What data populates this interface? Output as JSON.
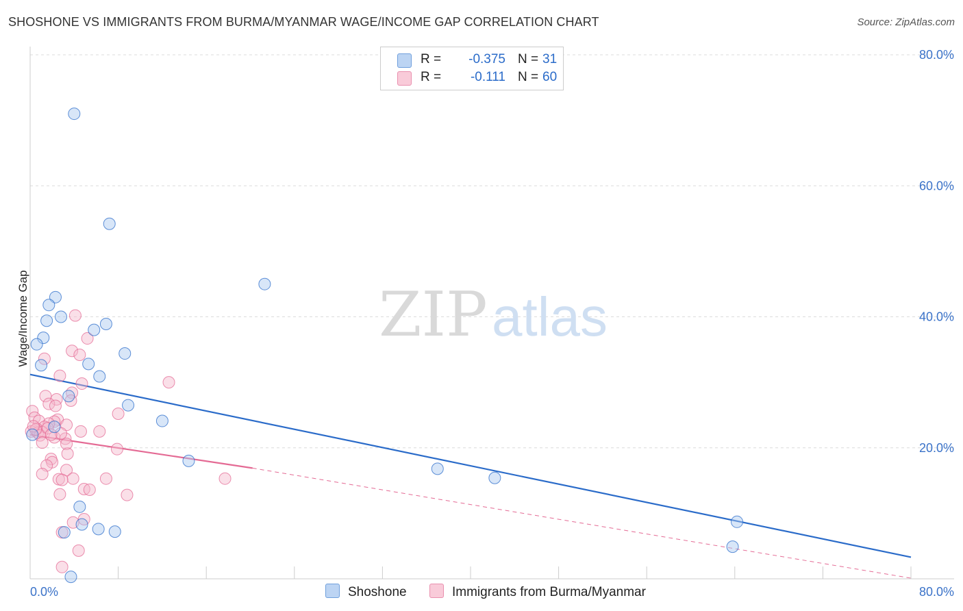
{
  "header": {
    "title": "SHOSHONE VS IMMIGRANTS FROM BURMA/MYANMAR WAGE/INCOME GAP CORRELATION CHART",
    "source": "Source: ZipAtlas.com"
  },
  "watermark": {
    "zip": "ZIP",
    "atlas": "atlas"
  },
  "colors": {
    "blue": "#2a6bc9",
    "blue_fill": "#a9c8ef",
    "pink": "#e46a94",
    "pink_fill": "#f5b8cb",
    "axis_text": "#3a72c8"
  },
  "legend": {
    "rows": [
      {
        "r_label": "R =",
        "r_value": "-0.375",
        "n_label": "N =",
        "n_value": "31"
      },
      {
        "r_label": "R =",
        "r_value": "-0.111",
        "n_label": "N =",
        "n_value": "60"
      }
    ],
    "bottom": [
      "Shoshone",
      "Immigrants from Burma/Myanmar"
    ]
  },
  "chart_data": {
    "type": "scatter",
    "title": "SHOSHONE VS IMMIGRANTS FROM BURMA/MYANMAR WAGE/INCOME GAP CORRELATION CHART",
    "xlabel": "",
    "ylabel": "Wage/Income Gap",
    "xlim": [
      0,
      80
    ],
    "ylim": [
      0,
      80
    ],
    "x_tick_labels": [
      "0.0%",
      "80.0%"
    ],
    "y_tick_labels": [
      "20.0%",
      "40.0%",
      "60.0%",
      "80.0%"
    ],
    "y_ticks": [
      20,
      40,
      60,
      80
    ],
    "grid": true,
    "series": [
      {
        "name": "Shoshone",
        "color": "#2a6bc9",
        "fill": "#a9c8ef",
        "points": [
          [
            4.0,
            71.0
          ],
          [
            7.2,
            54.2
          ],
          [
            21.3,
            45.0
          ],
          [
            2.3,
            43.0
          ],
          [
            1.7,
            41.8
          ],
          [
            2.8,
            40.0
          ],
          [
            1.5,
            39.4
          ],
          [
            6.9,
            38.9
          ],
          [
            5.8,
            38.0
          ],
          [
            1.2,
            36.8
          ],
          [
            0.6,
            35.8
          ],
          [
            8.6,
            34.4
          ],
          [
            1.0,
            32.6
          ],
          [
            5.3,
            32.8
          ],
          [
            6.3,
            30.9
          ],
          [
            3.5,
            27.9
          ],
          [
            8.9,
            26.5
          ],
          [
            12.0,
            24.1
          ],
          [
            2.2,
            23.2
          ],
          [
            0.2,
            22.0
          ],
          [
            14.4,
            18.0
          ],
          [
            37.0,
            16.8
          ],
          [
            42.2,
            15.4
          ],
          [
            4.5,
            11.0
          ],
          [
            4.7,
            8.3
          ],
          [
            3.1,
            7.1
          ],
          [
            6.2,
            7.6
          ],
          [
            7.7,
            7.2
          ],
          [
            64.2,
            8.7
          ],
          [
            63.8,
            4.9
          ],
          [
            3.7,
            0.3
          ]
        ]
      },
      {
        "name": "Immigrants from Burma/Myanmar",
        "color": "#e46a94",
        "fill": "#f5b8cb",
        "points": [
          [
            4.1,
            40.2
          ],
          [
            5.2,
            36.7
          ],
          [
            3.8,
            34.8
          ],
          [
            4.5,
            34.2
          ],
          [
            1.3,
            33.6
          ],
          [
            12.6,
            30.0
          ],
          [
            2.7,
            31.0
          ],
          [
            4.7,
            29.8
          ],
          [
            3.8,
            28.4
          ],
          [
            1.4,
            27.9
          ],
          [
            3.7,
            27.2
          ],
          [
            2.4,
            27.4
          ],
          [
            1.7,
            26.7
          ],
          [
            2.3,
            26.4
          ],
          [
            0.2,
            25.6
          ],
          [
            8.0,
            25.2
          ],
          [
            0.4,
            24.6
          ],
          [
            2.5,
            24.3
          ],
          [
            0.8,
            24.1
          ],
          [
            2.2,
            24.0
          ],
          [
            1.7,
            23.7
          ],
          [
            3.3,
            23.5
          ],
          [
            1.3,
            23.2
          ],
          [
            0.6,
            22.9
          ],
          [
            0.1,
            22.5
          ],
          [
            0.7,
            22.3
          ],
          [
            1.1,
            22.4
          ],
          [
            4.6,
            22.5
          ],
          [
            6.3,
            22.5
          ],
          [
            0.9,
            21.9
          ],
          [
            2.2,
            21.6
          ],
          [
            3.2,
            21.4
          ],
          [
            1.1,
            20.8
          ],
          [
            3.3,
            20.6
          ],
          [
            7.9,
            19.8
          ],
          [
            3.4,
            19.1
          ],
          [
            1.9,
            18.3
          ],
          [
            2.0,
            17.8
          ],
          [
            1.5,
            17.3
          ],
          [
            3.3,
            16.6
          ],
          [
            1.1,
            16.0
          ],
          [
            2.6,
            15.2
          ],
          [
            3.9,
            15.3
          ],
          [
            6.9,
            15.3
          ],
          [
            17.7,
            15.3
          ],
          [
            2.9,
            15.1
          ],
          [
            4.9,
            13.7
          ],
          [
            5.4,
            13.6
          ],
          [
            2.7,
            12.9
          ],
          [
            8.8,
            12.8
          ],
          [
            4.9,
            9.1
          ],
          [
            3.9,
            8.6
          ],
          [
            2.9,
            7.1
          ],
          [
            4.4,
            4.3
          ],
          [
            2.9,
            1.8
          ],
          [
            0.5,
            22.8
          ],
          [
            1.6,
            23.0
          ],
          [
            0.3,
            23.3
          ],
          [
            2.8,
            22.2
          ],
          [
            1.9,
            22.0
          ]
        ]
      }
    ],
    "trendlines": [
      {
        "series": "Shoshone",
        "x": [
          0,
          80
        ],
        "y": [
          31.2,
          3.3
        ],
        "style": "solid"
      },
      {
        "series": "Immigrants from Burma/Myanmar",
        "x": [
          0,
          20.2
        ],
        "y": [
          22.0,
          16.9
        ],
        "style": "solid"
      },
      {
        "series": "Immigrants from Burma/Myanmar",
        "x": [
          20.2,
          80
        ],
        "y": [
          16.9,
          0.1
        ],
        "style": "dashed"
      }
    ]
  }
}
